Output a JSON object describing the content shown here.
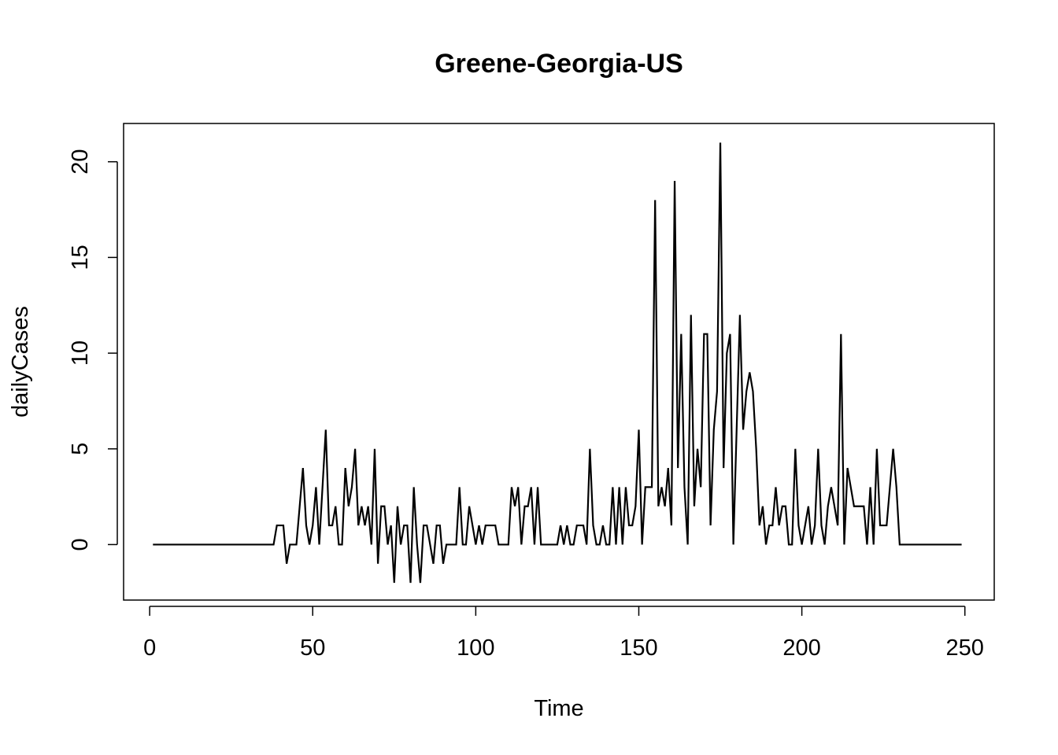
{
  "chart_data": {
    "type": "line",
    "title": "Greene-Georgia-US",
    "xlabel": "Time",
    "ylabel": "dailyCases",
    "xlim": [
      -8,
      259
    ],
    "ylim": [
      -2.9,
      22.0
    ],
    "xticks": [
      0,
      50,
      100,
      150,
      200,
      250
    ],
    "yticks": [
      0,
      5,
      10,
      15,
      20
    ],
    "grid": false,
    "series": [
      {
        "x_start": 1,
        "values": [
          0,
          0,
          0,
          0,
          0,
          0,
          0,
          0,
          0,
          0,
          0,
          0,
          0,
          0,
          0,
          0,
          0,
          0,
          0,
          0,
          0,
          0,
          0,
          0,
          0,
          0,
          0,
          0,
          0,
          0,
          0,
          0,
          0,
          0,
          0,
          0,
          0,
          0,
          1,
          1,
          1,
          -1,
          0,
          0,
          0,
          2,
          4,
          1,
          0,
          1,
          3,
          0,
          3,
          6,
          1,
          1,
          2,
          0,
          0,
          4,
          2,
          3,
          5,
          1,
          2,
          1,
          2,
          0,
          5,
          -1,
          2,
          2,
          0,
          1,
          -2,
          2,
          0,
          1,
          1,
          -2,
          3,
          0,
          -2,
          1,
          1,
          0,
          -1,
          1,
          1,
          -1,
          0,
          0,
          0,
          0,
          3,
          0,
          0,
          2,
          1,
          0,
          1,
          0,
          1,
          1,
          1,
          1,
          0,
          0,
          0,
          0,
          3,
          2,
          3,
          0,
          2,
          2,
          3,
          0,
          3,
          0,
          0,
          0,
          0,
          0,
          0,
          1,
          0,
          1,
          0,
          0,
          1,
          1,
          1,
          0,
          5,
          1,
          0,
          0,
          1,
          0,
          0,
          3,
          0,
          3,
          0,
          3,
          1,
          1,
          2,
          6,
          0,
          3,
          3,
          3,
          18,
          2,
          3,
          2,
          4,
          1,
          19,
          4,
          11,
          3,
          0,
          12,
          2,
          5,
          3,
          11,
          11,
          1,
          6,
          8,
          21,
          4,
          10,
          11,
          0,
          6,
          12,
          6,
          8,
          9,
          8,
          5,
          1,
          2,
          0,
          1,
          1,
          3,
          1,
          2,
          2,
          0,
          0,
          5,
          1,
          0,
          1,
          2,
          0,
          1,
          5,
          1,
          0,
          2,
          3,
          2,
          1,
          11,
          0,
          4,
          3,
          2,
          2,
          2,
          2,
          0,
          3,
          0,
          5,
          1,
          1,
          1,
          3,
          5,
          3,
          0,
          0,
          0,
          0,
          0,
          0,
          0,
          0,
          0,
          0,
          0,
          0,
          0,
          0,
          0,
          0,
          0,
          0,
          0,
          0
        ]
      }
    ]
  }
}
